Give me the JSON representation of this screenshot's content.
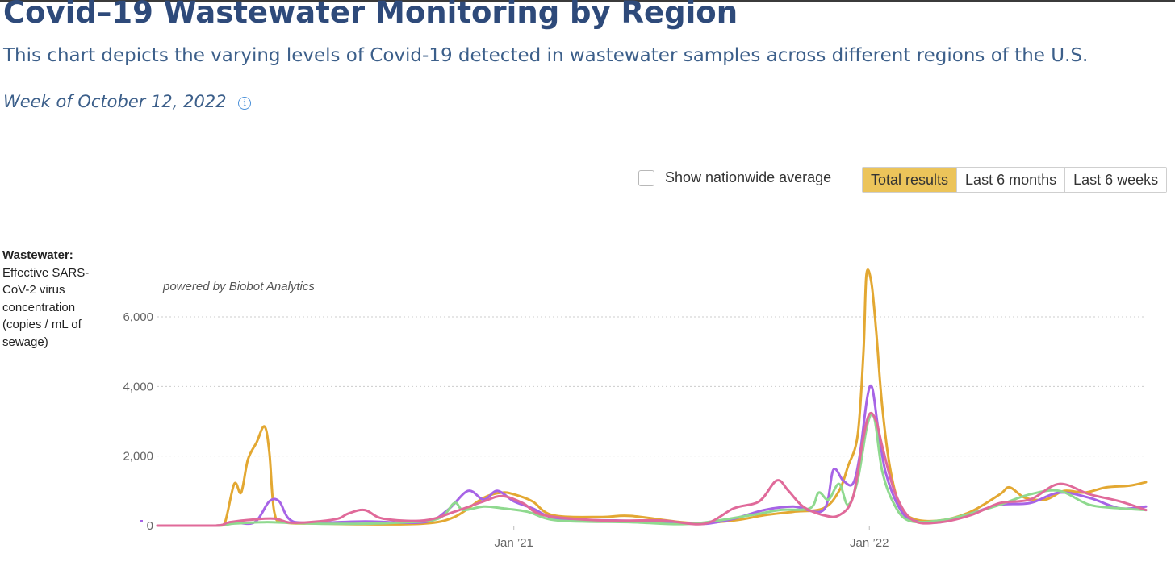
{
  "header": {
    "title": "Covid–19 Wastewater Monitoring by Region",
    "subtitle": "This chart depicts the varying levels of Covid-19 detected in wastewater samples across different regions of the U.S.",
    "week": "Week of October 12, 2022"
  },
  "controls": {
    "nationwide_label": "Show nationwide average",
    "nationwide_checked": false,
    "ranges": [
      {
        "label": "Total results",
        "active": true
      },
      {
        "label": "Last 6 months",
        "active": false
      },
      {
        "label": "Last 6 weeks",
        "active": false
      }
    ]
  },
  "axis": {
    "ylabel_bold": "Wastewater:",
    "ylabel_rest": "Effective SARS-CoV-2 virus concentration (copies / mL of sewage)"
  },
  "chart_data": {
    "type": "line",
    "powered_by": "powered by Biobot Analytics",
    "x_range": [
      "2020-01-01",
      "2022-10-12"
    ],
    "ylim": [
      0,
      7200
    ],
    "yticks": [
      0,
      2000,
      4000,
      6000
    ],
    "ytick_labels": [
      "0",
      "2,000",
      "4,000",
      "6,000"
    ],
    "xticks": [
      {
        "date": "2021-01-01",
        "label": "Jan ’21"
      },
      {
        "date": "2022-01-01",
        "label": "Jan ’22"
      }
    ],
    "grid": true,
    "legend": "none",
    "series": [
      {
        "color": "#e3a832",
        "points": [
          [
            "2020-01-01",
            0
          ],
          [
            "2020-03-01",
            0
          ],
          [
            "2020-03-10",
            60
          ],
          [
            "2020-03-20",
            1200
          ],
          [
            "2020-03-27",
            950
          ],
          [
            "2020-04-03",
            1900
          ],
          [
            "2020-04-12",
            2400
          ],
          [
            "2020-04-20",
            2850
          ],
          [
            "2020-04-25",
            2100
          ],
          [
            "2020-04-30",
            400
          ],
          [
            "2020-05-10",
            100
          ],
          [
            "2020-06-15",
            60
          ],
          [
            "2020-08-01",
            40
          ],
          [
            "2020-10-01",
            60
          ],
          [
            "2020-11-01",
            250
          ],
          [
            "2020-12-01",
            800
          ],
          [
            "2020-12-20",
            950
          ],
          [
            "2021-01-01",
            900
          ],
          [
            "2021-01-20",
            700
          ],
          [
            "2021-02-10",
            300
          ],
          [
            "2021-04-01",
            250
          ],
          [
            "2021-05-01",
            280
          ],
          [
            "2021-07-01",
            80
          ],
          [
            "2021-08-15",
            150
          ],
          [
            "2021-09-15",
            300
          ],
          [
            "2021-10-15",
            400
          ],
          [
            "2021-11-15",
            500
          ],
          [
            "2021-12-01",
            1000
          ],
          [
            "2021-12-10",
            1700
          ],
          [
            "2021-12-20",
            2600
          ],
          [
            "2021-12-26",
            5000
          ],
          [
            "2021-12-29",
            7200
          ],
          [
            "2022-01-03",
            7000
          ],
          [
            "2022-01-08",
            5600
          ],
          [
            "2022-01-14",
            3500
          ],
          [
            "2022-01-22",
            1700
          ],
          [
            "2022-02-01",
            600
          ],
          [
            "2022-02-15",
            200
          ],
          [
            "2022-03-15",
            150
          ],
          [
            "2022-04-15",
            400
          ],
          [
            "2022-05-15",
            900
          ],
          [
            "2022-05-25",
            1100
          ],
          [
            "2022-06-10",
            800
          ],
          [
            "2022-07-01",
            750
          ],
          [
            "2022-07-20",
            1000
          ],
          [
            "2022-08-10",
            950
          ],
          [
            "2022-09-01",
            1100
          ],
          [
            "2022-09-25",
            1150
          ],
          [
            "2022-10-12",
            1250
          ]
        ]
      },
      {
        "color": "#a764e6",
        "points": [
          [
            "2020-01-01",
            0
          ],
          [
            "2020-03-01",
            0
          ],
          [
            "2020-03-20",
            80
          ],
          [
            "2020-04-10",
            100
          ],
          [
            "2020-04-25",
            700
          ],
          [
            "2020-05-05",
            700
          ],
          [
            "2020-05-15",
            200
          ],
          [
            "2020-06-01",
            80
          ],
          [
            "2020-08-01",
            120
          ],
          [
            "2020-10-01",
            100
          ],
          [
            "2020-10-25",
            450
          ],
          [
            "2020-11-15",
            1000
          ],
          [
            "2020-12-01",
            750
          ],
          [
            "2020-12-15",
            1000
          ],
          [
            "2021-01-01",
            700
          ],
          [
            "2021-01-20",
            500
          ],
          [
            "2021-02-15",
            200
          ],
          [
            "2021-04-15",
            150
          ],
          [
            "2021-06-15",
            100
          ],
          [
            "2021-07-15",
            50
          ],
          [
            "2021-08-15",
            200
          ],
          [
            "2021-09-15",
            450
          ],
          [
            "2021-10-15",
            550
          ],
          [
            "2021-11-15",
            450
          ],
          [
            "2021-11-25",
            1600
          ],
          [
            "2021-12-05",
            1300
          ],
          [
            "2021-12-15",
            1200
          ],
          [
            "2021-12-22",
            2000
          ],
          [
            "2021-12-30",
            3700
          ],
          [
            "2022-01-04",
            3950
          ],
          [
            "2022-01-10",
            2800
          ],
          [
            "2022-01-18",
            1500
          ],
          [
            "2022-02-01",
            500
          ],
          [
            "2022-02-15",
            150
          ],
          [
            "2022-03-15",
            100
          ],
          [
            "2022-04-15",
            350
          ],
          [
            "2022-05-15",
            600
          ],
          [
            "2022-06-15",
            650
          ],
          [
            "2022-07-15",
            950
          ],
          [
            "2022-08-15",
            800
          ],
          [
            "2022-09-15",
            500
          ],
          [
            "2022-10-12",
            550
          ]
        ]
      },
      {
        "color": "#8fd98f",
        "points": [
          [
            "2020-01-01",
            0
          ],
          [
            "2020-03-01",
            0
          ],
          [
            "2020-03-20",
            60
          ],
          [
            "2020-04-20",
            100
          ],
          [
            "2020-05-15",
            80
          ],
          [
            "2020-07-01",
            50
          ],
          [
            "2020-09-01",
            80
          ],
          [
            "2020-10-15",
            200
          ],
          [
            "2020-11-01",
            650
          ],
          [
            "2020-11-10",
            450
          ],
          [
            "2020-12-01",
            550
          ],
          [
            "2020-12-20",
            500
          ],
          [
            "2021-01-15",
            400
          ],
          [
            "2021-02-15",
            150
          ],
          [
            "2021-05-01",
            100
          ],
          [
            "2021-07-01",
            50
          ],
          [
            "2021-09-01",
            300
          ],
          [
            "2021-10-01",
            450
          ],
          [
            "2021-11-01",
            500
          ],
          [
            "2021-11-10",
            950
          ],
          [
            "2021-11-20",
            750
          ],
          [
            "2021-12-01",
            1200
          ],
          [
            "2021-12-10",
            600
          ],
          [
            "2021-12-20",
            1300
          ],
          [
            "2021-12-30",
            2900
          ],
          [
            "2022-01-06",
            3100
          ],
          [
            "2022-01-14",
            1600
          ],
          [
            "2022-01-25",
            700
          ],
          [
            "2022-02-10",
            150
          ],
          [
            "2022-03-15",
            150
          ],
          [
            "2022-04-15",
            350
          ],
          [
            "2022-05-15",
            600
          ],
          [
            "2022-06-15",
            900
          ],
          [
            "2022-07-15",
            1000
          ],
          [
            "2022-08-15",
            600
          ],
          [
            "2022-09-15",
            500
          ],
          [
            "2022-10-12",
            450
          ]
        ]
      },
      {
        "color": "#e06a9a",
        "points": [
          [
            "2020-01-01",
            0
          ],
          [
            "2020-03-01",
            0
          ],
          [
            "2020-03-15",
            100
          ],
          [
            "2020-04-10",
            180
          ],
          [
            "2020-05-01",
            200
          ],
          [
            "2020-05-20",
            80
          ],
          [
            "2020-07-01",
            180
          ],
          [
            "2020-07-15",
            350
          ],
          [
            "2020-08-01",
            450
          ],
          [
            "2020-08-20",
            200
          ],
          [
            "2020-10-01",
            150
          ],
          [
            "2020-11-01",
            400
          ],
          [
            "2020-12-01",
            700
          ],
          [
            "2020-12-20",
            850
          ],
          [
            "2021-01-10",
            650
          ],
          [
            "2021-02-01",
            300
          ],
          [
            "2021-04-01",
            150
          ],
          [
            "2021-06-01",
            150
          ],
          [
            "2021-07-15",
            50
          ],
          [
            "2021-08-15",
            500
          ],
          [
            "2021-09-10",
            700
          ],
          [
            "2021-09-28",
            1300
          ],
          [
            "2021-10-10",
            1000
          ],
          [
            "2021-10-25",
            550
          ],
          [
            "2021-11-15",
            300
          ],
          [
            "2021-12-01",
            300
          ],
          [
            "2021-12-15",
            800
          ],
          [
            "2021-12-25",
            2400
          ],
          [
            "2022-01-01",
            3200
          ],
          [
            "2022-01-08",
            3000
          ],
          [
            "2022-01-15",
            2200
          ],
          [
            "2022-01-28",
            900
          ],
          [
            "2022-02-15",
            150
          ],
          [
            "2022-03-15",
            100
          ],
          [
            "2022-04-15",
            300
          ],
          [
            "2022-05-15",
            650
          ],
          [
            "2022-06-15",
            750
          ],
          [
            "2022-07-15",
            1200
          ],
          [
            "2022-08-15",
            900
          ],
          [
            "2022-09-15",
            700
          ],
          [
            "2022-10-12",
            450
          ]
        ]
      }
    ]
  }
}
